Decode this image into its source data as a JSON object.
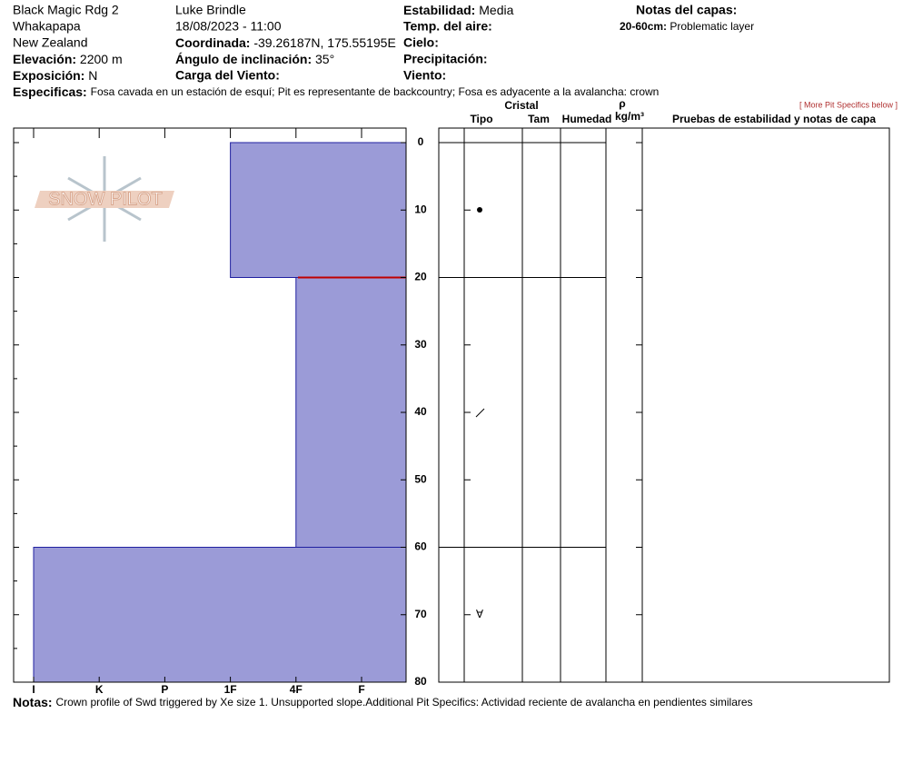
{
  "header": {
    "site": "Black Magic Rdg 2",
    "area": "Whakapapa",
    "country": "New Zealand",
    "elevation_label": "Elevación:",
    "elevation": "2200 m",
    "aspect_label": "Exposición:",
    "aspect": "N",
    "observer": "Luke Brindle",
    "datetime": "18/08/2023 - 11:00",
    "coord_label": "Coordinada:",
    "coord": "-39.26187N, 175.55195E",
    "slope_label": "Ángulo de inclinación:",
    "slope": "35°",
    "wind_load_label": "Carga del Viento:",
    "stability_label": "Estabilidad:",
    "stability": "Media",
    "air_temp_label": "Temp. del aire:",
    "sky_label": "Cielo:",
    "precip_label": "Precipitación:",
    "wind_label": "Viento:",
    "layer_notes_label": "Notas del capas:",
    "layer_note_range": "20-60cm:",
    "layer_note": "Problematic layer",
    "specifics_label": "Especificas:",
    "specifics": "Fosa cavada en un estación de esquí; Pit es representante de backcountry; Fosa es adyacente a la avalancha: crown",
    "more_link": "[ More Pit Specifics below ]",
    "logo": "SNOW PILOT"
  },
  "table_headers": {
    "crystal": "Cristal",
    "type": "Tipo",
    "size": "Tam",
    "moisture": "Humedad",
    "rho": "ρ",
    "density_unit": "kg/m³",
    "tests": "Pruebas de estabilidad y notas de capa"
  },
  "notes": {
    "label": "Notas:",
    "text": "Crown profile of Swd triggered by Xe size 1. Unsupported slope.Additional Pit Specifics: Actividad reciente de avalancha en pendientes similares"
  },
  "chart_data": {
    "type": "snow-profile",
    "hardness_scale": [
      "I",
      "K",
      "P",
      "1F",
      "4F",
      "F"
    ],
    "layers": [
      {
        "top": 0,
        "bottom": 20,
        "hardness": "1F"
      },
      {
        "top": 20,
        "bottom": 60,
        "hardness": "4F"
      },
      {
        "top": 60,
        "bottom": 80,
        "hardness": "I"
      }
    ],
    "color": "#9b9bd7",
    "ylim": [
      0,
      80
    ],
    "yticks": [
      0,
      10,
      20,
      30,
      40,
      50,
      60,
      70,
      80
    ]
  }
}
